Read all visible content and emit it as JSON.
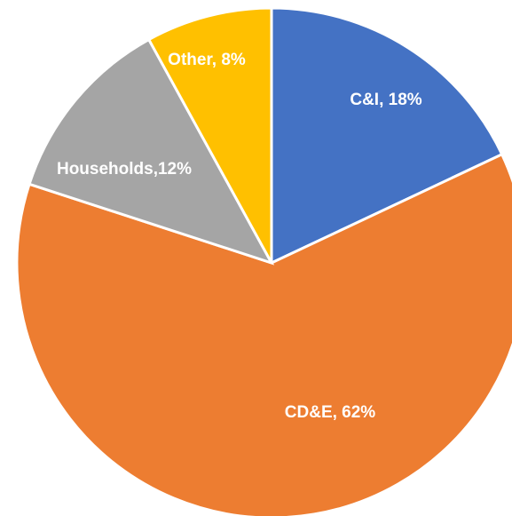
{
  "chart_data": {
    "type": "pie",
    "values": [
      18,
      62,
      12,
      8
    ],
    "value_labels": [
      "C&I, 18%",
      "CD&E, 62%",
      "Households,12%",
      "Other, 8%"
    ],
    "colors": [
      "#4472c4",
      "#ed7d31",
      "#a5a5a5",
      "#ffc000"
    ]
  }
}
